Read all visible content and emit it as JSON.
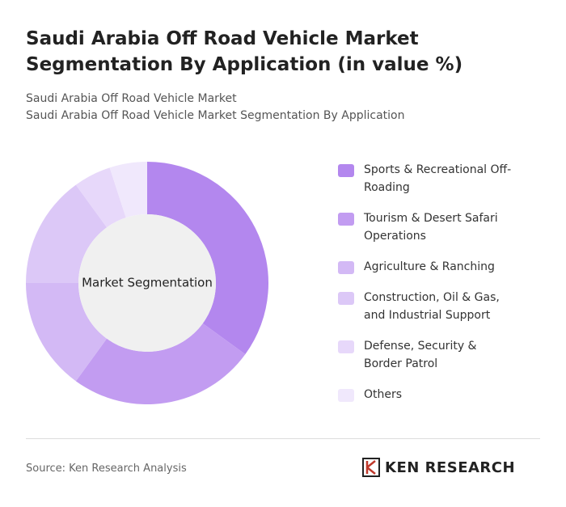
{
  "chart_data": {
    "type": "donut",
    "title": "Saudi Arabia Off Road Vehicle Market Segmentation By Application (in value %)",
    "subtitle_lines": [
      "Saudi Arabia Off Road Vehicle Market",
      "Saudi Arabia Off Road Vehicle Market Segmentation By Application"
    ],
    "center_label": "Market Segmentation",
    "categories": [
      "Sports & Recreational Off-Roading",
      "Tourism & Desert Safari Operations",
      "Agriculture & Ranching",
      "Construction, Oil & Gas, and Industrial Support",
      "Defense, Security & Border Patrol",
      "Others"
    ],
    "values": [
      35,
      25,
      15,
      15,
      5,
      5
    ],
    "colors": [
      "#b387ee",
      "#c29cf1",
      "#d3b9f5",
      "#dcc8f7",
      "#e7d8fa",
      "#f0e8fc"
    ]
  },
  "source": "Source: Ken Research Analysis",
  "logo": "KEN RESEARCH"
}
